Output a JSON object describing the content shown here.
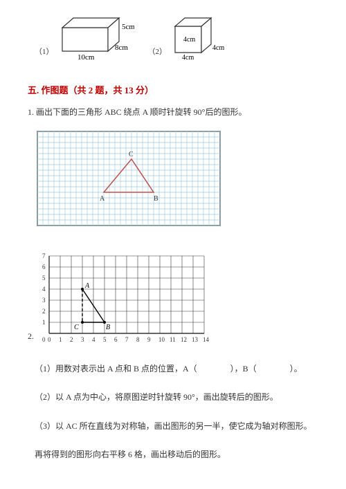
{
  "cuboid": {
    "label": "（1）",
    "dims": {
      "w": "10cm",
      "d": "8cm",
      "h": "5cm"
    },
    "stroke": "#333333",
    "fill": "#ffffff",
    "text_fontsize": 11
  },
  "cube": {
    "label": "（2）",
    "dims": {
      "w": "4cm",
      "d": "4cm",
      "h": "4cm"
    },
    "stroke": "#333333",
    "fill": "#ffffff",
    "text_fontsize": 10
  },
  "section": {
    "title": "五. 作图题（共 2 题，共 13 分）",
    "color": "#c00000"
  },
  "q1": {
    "text": "1. 画出下面的三角形 ABC 绕点 A 顺时针旋转 90°后的图形。",
    "grid": {
      "cols": 33,
      "rows": 17,
      "cell": 8,
      "grid_color": "#9ecfe6",
      "border_color": "#333333",
      "bg": "#ffffff",
      "triangle": {
        "A": [
          12,
          11
        ],
        "B": [
          21,
          11
        ],
        "C": [
          17,
          5
        ],
        "stroke": "#c0504d",
        "label_A": "A",
        "label_B": "B",
        "label_C": "C",
        "label_color": "#333333"
      }
    }
  },
  "q2": {
    "num": "2.",
    "grid": {
      "cols": 14,
      "rows": 7,
      "cell": 16,
      "grid_color": "#333333",
      "axis_labels_x": [
        "0",
        "1",
        "2",
        "3",
        "4",
        "5",
        "6",
        "7",
        "8",
        "9",
        "10",
        "11",
        "12",
        "13",
        "14"
      ],
      "axis_labels_y": [
        "0",
        "1",
        "2",
        "3",
        "4",
        "5",
        "6",
        "7"
      ],
      "text_fontsize": 9,
      "triangle": {
        "A": [
          3,
          4
        ],
        "B": [
          5,
          1
        ],
        "C": [
          3,
          1
        ],
        "stroke": "#000000",
        "fill": "none",
        "dash_AC": "4,3",
        "label_A": "A",
        "label_B": "B",
        "label_C": "C"
      }
    },
    "sub1": "（1）用数对表示出 A 点和 B 点的位置，A（　　　　），B（　　　　）。",
    "sub2": "（2）以 A 点为中心，将原图逆时针旋转 90°，画出旋转后的图形。",
    "sub3": "（3）以 AC 所在直线为对称轴，画出图形的另一半，使它成为轴对称图形。",
    "sub_final": "再将得到的图形向右平移 6 格，画出移动后的图形。"
  }
}
